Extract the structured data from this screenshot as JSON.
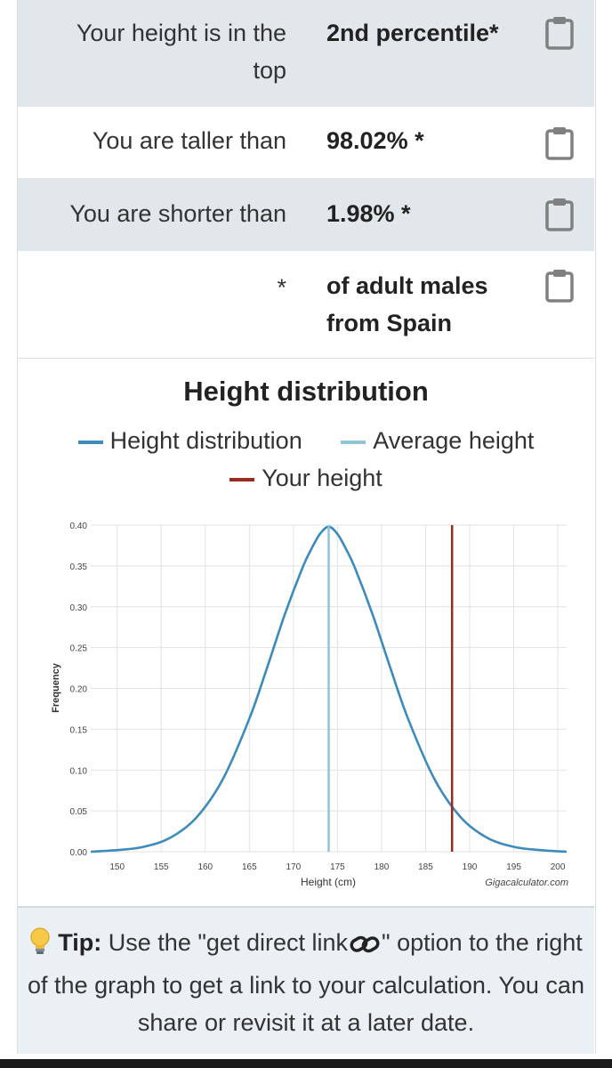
{
  "results": [
    {
      "label_lines": [
        "Your height is in the",
        "top"
      ],
      "value_lines": [
        "2nd percentile*"
      ]
    },
    {
      "label_lines": [
        "You are taller than"
      ],
      "value_lines": [
        "98.02% *"
      ]
    },
    {
      "label_lines": [
        "You are shorter than"
      ],
      "value_lines": [
        "1.98% *"
      ]
    },
    {
      "label_lines": [
        "*"
      ],
      "value_lines": [
        "of adult males",
        "from Spain"
      ]
    }
  ],
  "icons": {
    "copy": "clipboard-icon",
    "tip": "lightbulb-icon",
    "link": "link-icon"
  },
  "colors": {
    "shaded_row": "#e1e7eb",
    "distribution": "#3d8bbd",
    "average": "#8fc4d6",
    "your_height": "#9b2a1f"
  },
  "chart_data": {
    "type": "line",
    "title": "Height distribution",
    "legend": [
      "Height distribution",
      "Average height",
      "Your height"
    ],
    "legend_placement": "top",
    "xlabel": "Height (cm)",
    "ylabel": "Frequency",
    "xlim": [
      147,
      201
    ],
    "ylim": [
      0,
      0.4
    ],
    "x_ticks": [
      150,
      155,
      160,
      165,
      170,
      175,
      180,
      185,
      190,
      195,
      200
    ],
    "y_ticks": [
      "0.00",
      "0.05",
      "0.10",
      "0.15",
      "0.20",
      "0.25",
      "0.30",
      "0.35",
      "0.40"
    ],
    "grid": true,
    "series": [
      {
        "name": "Height distribution",
        "x": [
          147,
          150,
          153,
          156,
          159,
          162,
          165,
          167,
          169,
          171,
          172,
          173,
          174,
          175,
          176,
          177,
          179,
          181,
          183,
          186,
          189,
          192,
          195,
          198,
          201
        ],
        "y": [
          0.0,
          0.002,
          0.006,
          0.017,
          0.042,
          0.089,
          0.163,
          0.225,
          0.29,
          0.347,
          0.37,
          0.389,
          0.398,
          0.389,
          0.37,
          0.347,
          0.29,
          0.225,
          0.163,
          0.089,
          0.042,
          0.017,
          0.006,
          0.002,
          0.0
        ]
      }
    ],
    "average_height": 174,
    "your_height": 188,
    "credit": "Gigacalculator.com"
  },
  "tip": {
    "prefix": "Tip:",
    "text_before_icon": "Use the \"get direct link",
    "text_after_icon": "\" option to the right of the graph to get a link to your calculation. You can share or revisit it at a later date."
  }
}
